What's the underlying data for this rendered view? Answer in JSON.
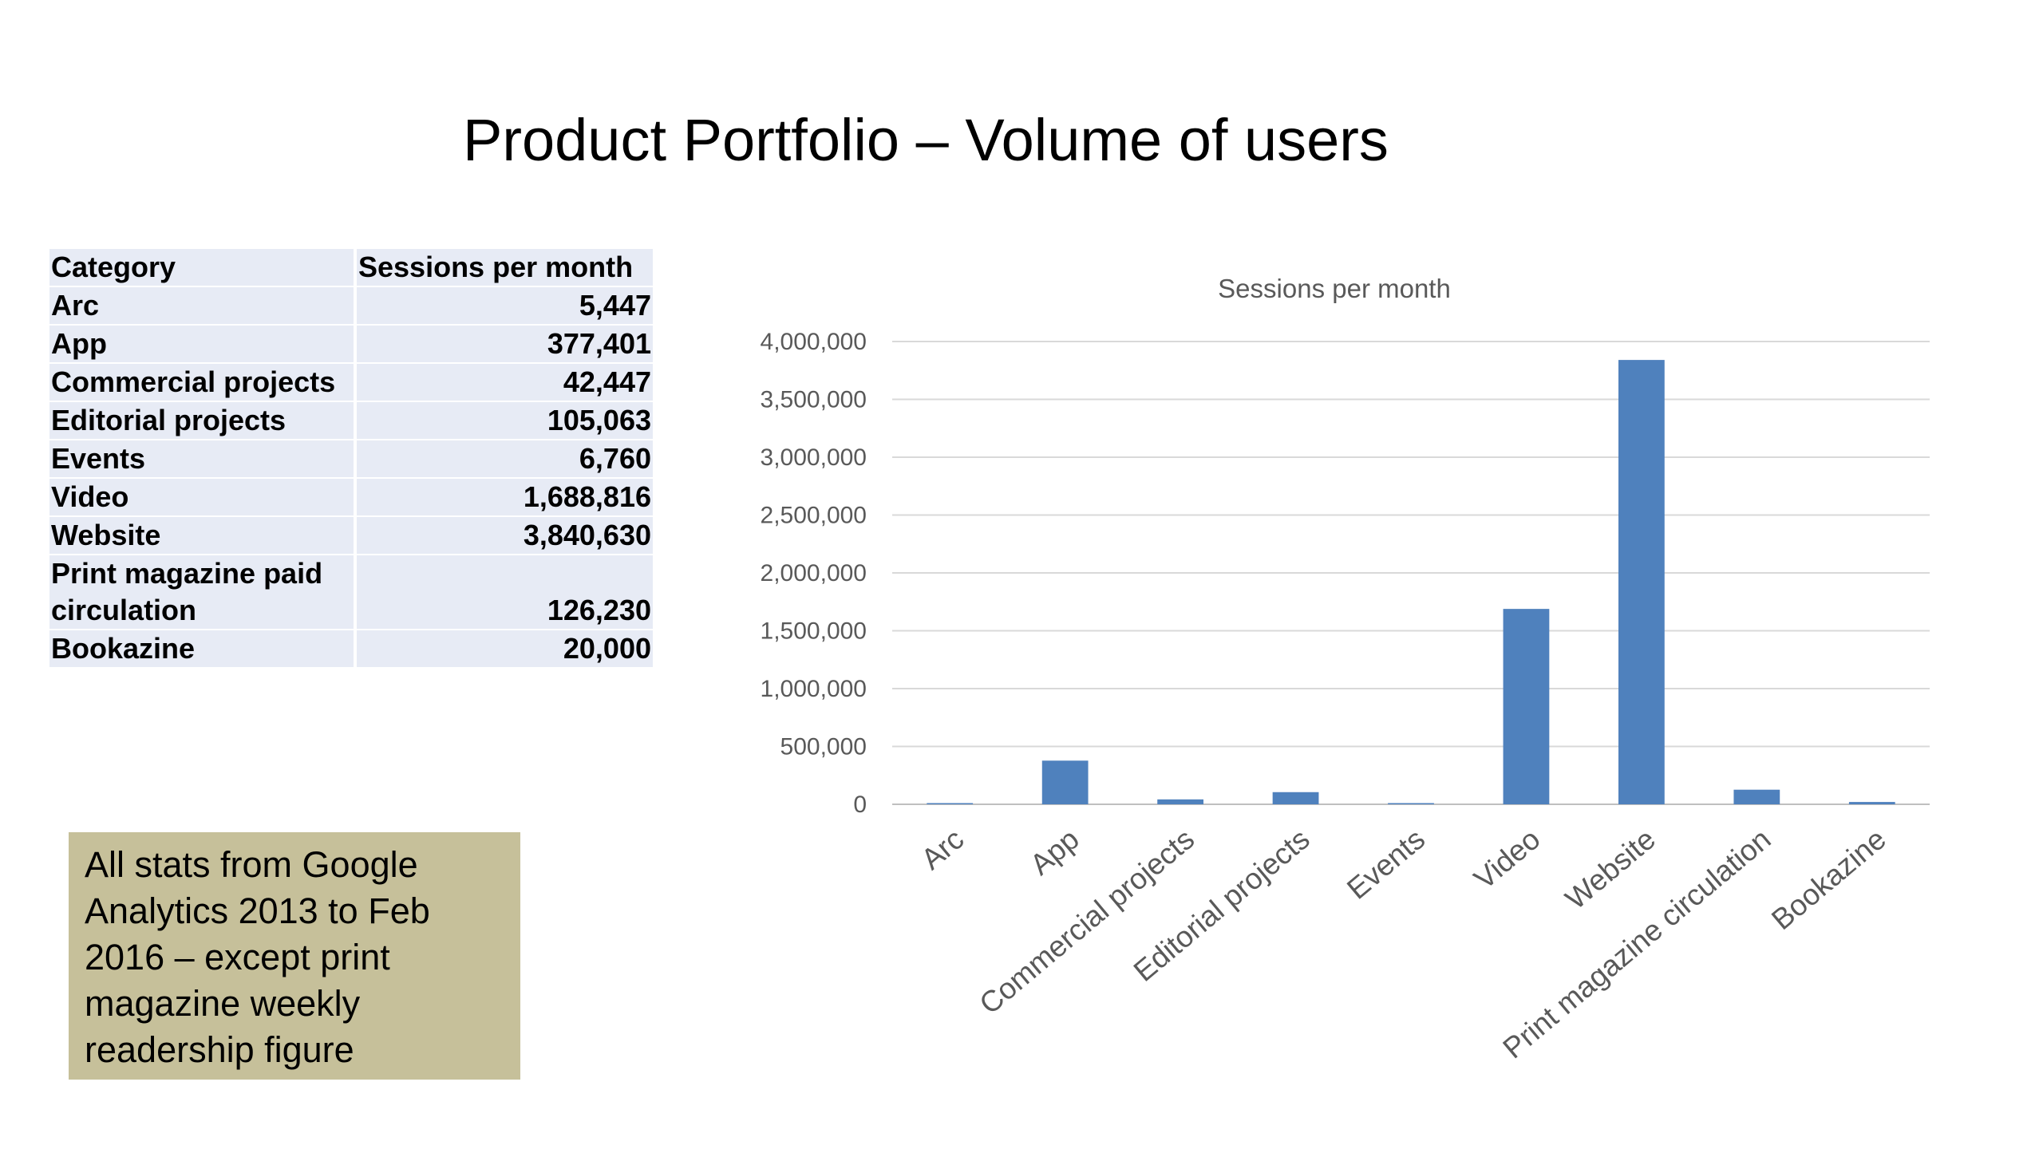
{
  "slide": {
    "title": "Product Portfolio – Volume of users",
    "note": "All stats from Google Analytics 2013 to Feb 2016 – except print magazine weekly readership figure"
  },
  "table": {
    "headers": [
      "Category",
      "Sessions per month"
    ],
    "rows": [
      {
        "category": "Arc",
        "value": "5,447"
      },
      {
        "category": "App",
        "value": "377,401"
      },
      {
        "category": "Commercial projects",
        "value": "42,447"
      },
      {
        "category": "Editorial projects",
        "value": "105,063"
      },
      {
        "category": "Events",
        "value": "6,760"
      },
      {
        "category": "Video",
        "value": "1,688,816"
      },
      {
        "category": "Website",
        "value": "3,840,630"
      },
      {
        "category": "Print magazine paid circulation",
        "value": "126,230"
      },
      {
        "category": "Bookazine",
        "value": "20,000"
      }
    ]
  },
  "chart_data": {
    "type": "bar",
    "title": "Sessions per month",
    "categories": [
      "Arc",
      "App",
      "Commercial projects",
      "Editorial projects",
      "Events",
      "Video",
      "Website",
      "Print magazine circulation",
      "Bookazine"
    ],
    "values": [
      5447,
      377401,
      42447,
      105063,
      6760,
      1688816,
      3840630,
      126230,
      20000
    ],
    "ylim": [
      0,
      4000000
    ],
    "yticks": [
      0,
      500000,
      1000000,
      1500000,
      2000000,
      2500000,
      3000000,
      3500000,
      4000000
    ],
    "ytick_labels": [
      "0",
      "500,000",
      "1,000,000",
      "1,500,000",
      "2,000,000",
      "2,500,000",
      "3,000,000",
      "3,500,000",
      "4,000,000"
    ],
    "grid": true,
    "legend": "none",
    "colors": {
      "bar": "#4f81bd",
      "grid": "#d9d9d9",
      "text": "#595959"
    }
  }
}
